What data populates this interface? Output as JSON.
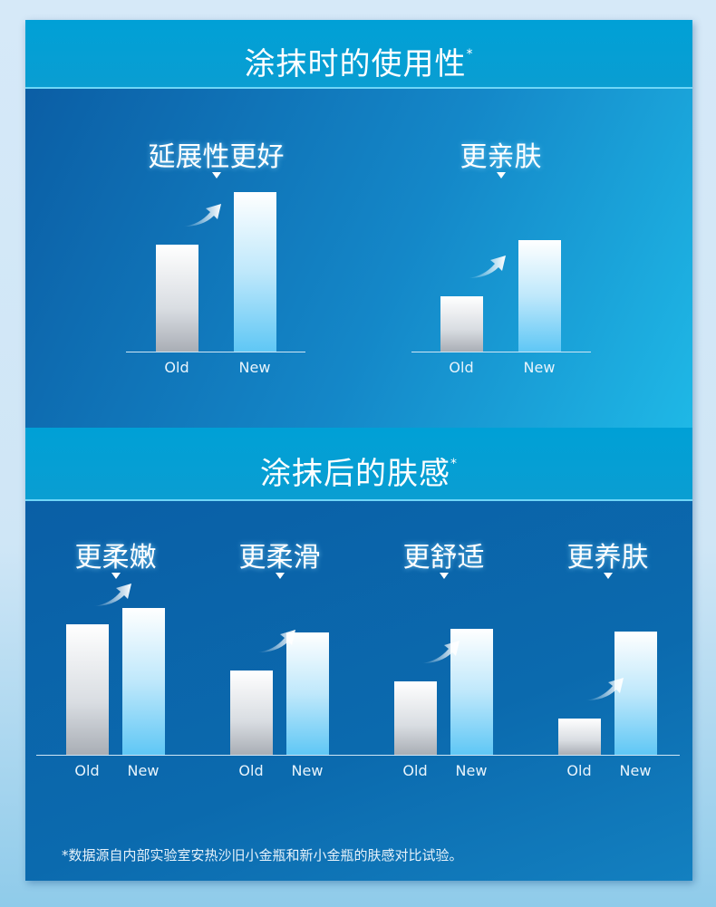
{
  "section1_title": "涂抹时的使用性",
  "section2_title": "涂抹后的肤感",
  "asterisk": "*",
  "footnote": "*数据源自内部实验室安热沙旧小金瓶和新小金瓶的肤感对比试验。",
  "colors": {
    "header": "#00a0d6",
    "panel": "#0b5ea5",
    "old_bar": "#c9cdd3",
    "new_bar": "#7fd3f7"
  },
  "chart_data": [
    {
      "type": "bar",
      "title": "延展性更好",
      "categories": [
        "Old",
        "New"
      ],
      "values": [
        118,
        176
      ],
      "ylim": [
        0,
        180
      ],
      "note": "relative heights, no axis scale shown"
    },
    {
      "type": "bar",
      "title": "更亲肤",
      "categories": [
        "Old",
        "New"
      ],
      "values": [
        61,
        123
      ],
      "ylim": [
        0,
        180
      ]
    },
    {
      "type": "bar",
      "title": "更柔嫩",
      "categories": [
        "Old",
        "New"
      ],
      "values": [
        144,
        162
      ],
      "ylim": [
        0,
        180
      ]
    },
    {
      "type": "bar",
      "title": "更柔滑",
      "categories": [
        "Old",
        "New"
      ],
      "values": [
        93,
        135
      ],
      "ylim": [
        0,
        180
      ]
    },
    {
      "type": "bar",
      "title": "更舒适",
      "categories": [
        "Old",
        "New"
      ],
      "values": [
        81,
        139
      ],
      "ylim": [
        0,
        180
      ]
    },
    {
      "type": "bar",
      "title": "更养肤",
      "categories": [
        "Old",
        "New"
      ],
      "values": [
        40,
        136
      ],
      "ylim": [
        0,
        180
      ]
    }
  ]
}
